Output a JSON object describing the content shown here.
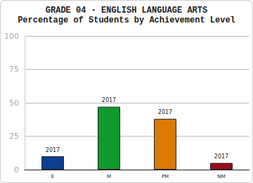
{
  "chart_data": {
    "type": "bar",
    "title": "GRADE 04 - ENGLISH LANGUAGE ARTS",
    "subtitle": "Percentage of Students by Achievement Level",
    "categories": [
      "E",
      "M",
      "PM",
      "NM"
    ],
    "series": [
      {
        "name": "2017",
        "colors": [
          "#0d3f8f",
          "#0e9a2c",
          "#d97b05",
          "#9c0a1c"
        ],
        "values": [
          10,
          47,
          38,
          5
        ]
      }
    ],
    "ylim": [
      0,
      100
    ],
    "yticks": [
      0,
      25,
      50,
      75,
      100
    ],
    "grid": true
  }
}
